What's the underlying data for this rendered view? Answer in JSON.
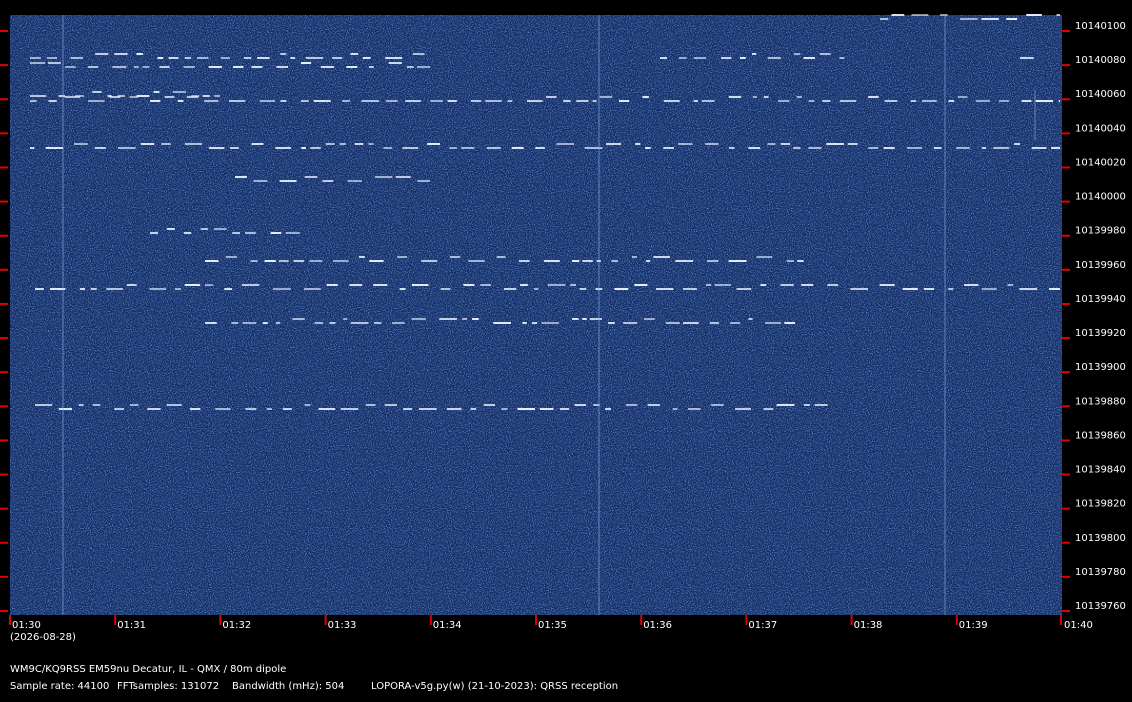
{
  "y_labels": [
    "10140100",
    "10140080",
    "10140060",
    "10140040",
    "10140020",
    "10140000",
    "10139980",
    "10139960",
    "10139940",
    "10139920",
    "10139900",
    "10139880",
    "10139860",
    "10139840",
    "10139820",
    "10139800",
    "10139780",
    "10139760"
  ],
  "x_labels": [
    "01:30",
    "01:31",
    "01:32",
    "01:33",
    "01:34",
    "01:35",
    "01:36",
    "01:37",
    "01:38",
    "01:39",
    "01:40"
  ],
  "date": "(2026-08-28)",
  "station": "WM9C/KQ9RSS EM59nu Decatur, IL - QMX / 80m dipole",
  "sample_rate": "Sample rate: 44100",
  "fft_samples": "FFTsamples: 131072",
  "bandwidth": "Bandwidth (mHz): 504",
  "software": "LOPORA-v5g.py(w) (21-10-2023): QRSS reception"
}
